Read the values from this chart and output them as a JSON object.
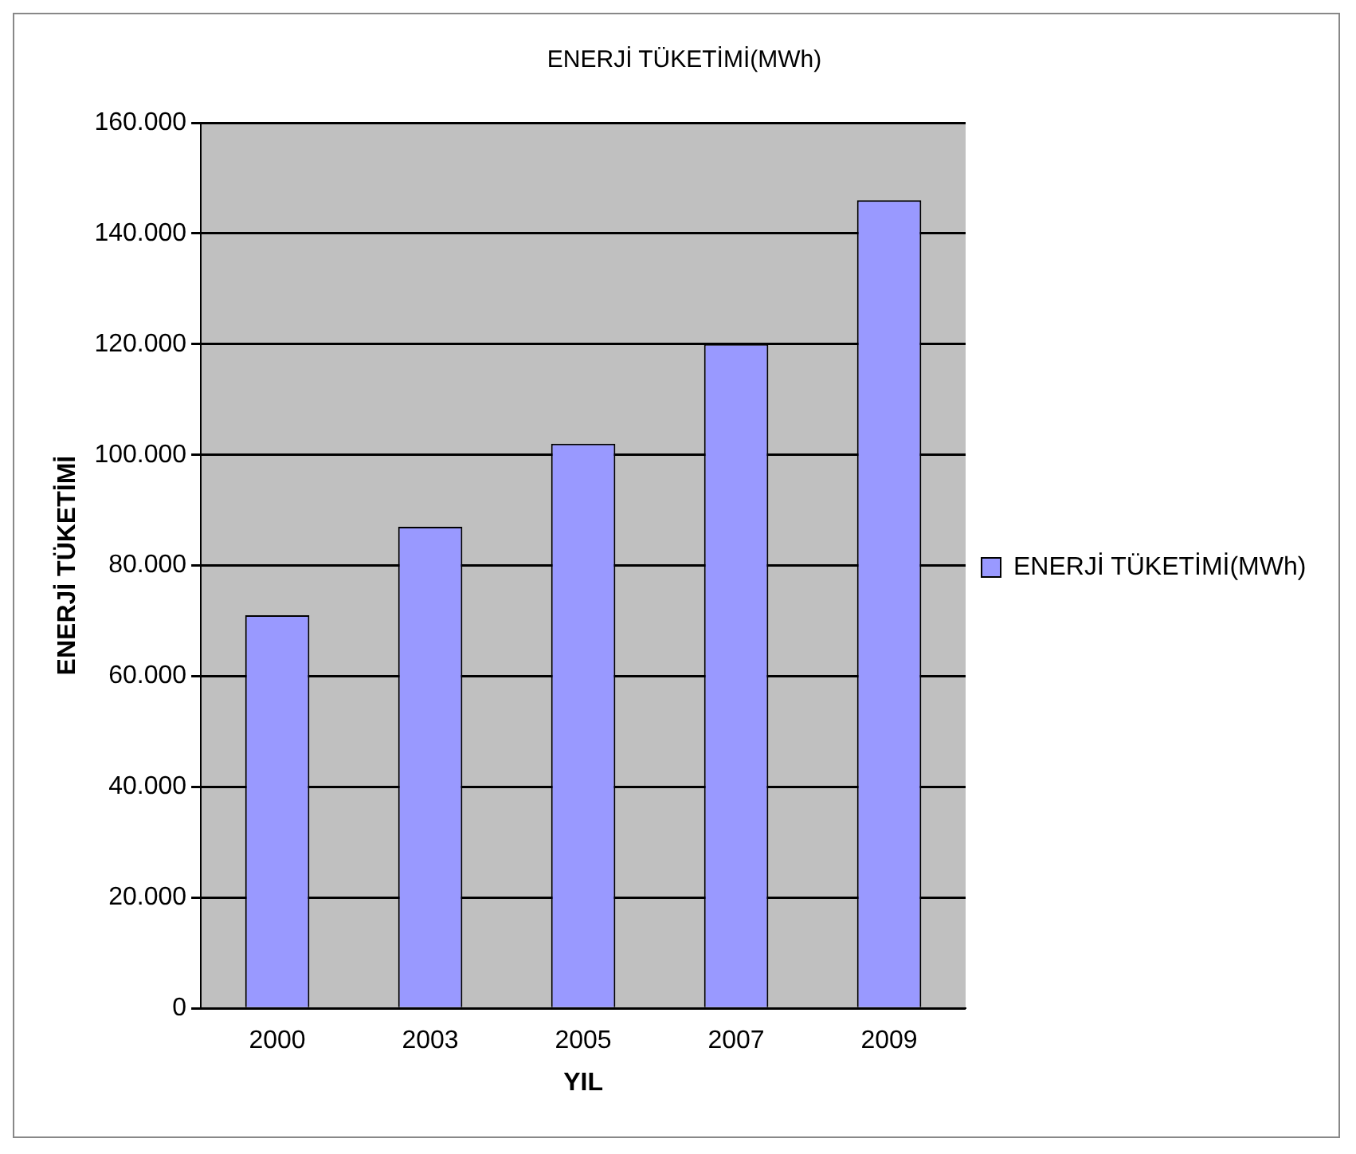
{
  "chart_data": {
    "type": "bar",
    "title": "ENERJİ TÜKETİMİ(MWh)",
    "xlabel": "YIL",
    "ylabel": "ENERJİ TÜKETİMİ",
    "categories": [
      "2000",
      "2003",
      "2005",
      "2007",
      "2009"
    ],
    "series": [
      {
        "name": "ENERJİ TÜKETİMİ(MWh)",
        "color": "#9999ff",
        "values": [
          71000,
          87000,
          102000,
          120000,
          146000
        ]
      }
    ],
    "ylim": [
      0,
      160000
    ],
    "yticks": [
      0,
      {
        "value": 20000,
        "label": "20.000"
      },
      {
        "value": 40000,
        "label": "40.000"
      },
      {
        "value": 60000,
        "label": "60.000"
      },
      {
        "value": 80000,
        "label": "80.000"
      },
      {
        "value": 100000,
        "label": "100.000"
      },
      {
        "value": 120000,
        "label": "120.000"
      },
      {
        "value": 140000,
        "label": "140.000"
      },
      {
        "value": 160000,
        "label": "160.000"
      }
    ],
    "grid": "y",
    "legend": "right"
  }
}
